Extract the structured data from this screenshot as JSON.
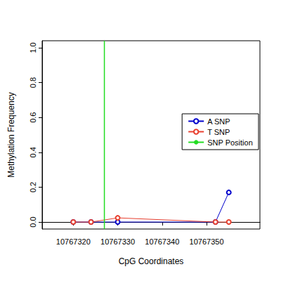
{
  "chart_data": {
    "type": "line",
    "x_label": "CpG Coordinates",
    "y_label": "Methylation Frequency",
    "x": [
      10767320,
      10767324,
      10767330,
      10767352,
      10767355
    ],
    "series": [
      {
        "name": "A SNP",
        "color": "#0000cc",
        "values": [
          0,
          0,
          0,
          0,
          0.17
        ],
        "marker": "circle"
      },
      {
        "name": "T SNP",
        "color": "#e8402f",
        "values": [
          0,
          0,
          0.024,
          0,
          0
        ],
        "marker": "circle"
      },
      {
        "name": "SNP Position",
        "color": "#22dd22",
        "type": "vline",
        "x": 10767327
      }
    ],
    "xlim": [
      10767313,
      10767362
    ],
    "xticks": [
      10767320,
      10767330,
      10767340,
      10767350
    ],
    "ylim": [
      -0.04,
      1.04
    ],
    "yticks": [
      {
        "value": 0,
        "label": "0.0"
      },
      {
        "value": 0.2,
        "label": "0.2"
      },
      {
        "value": 0.4,
        "label": "0.4"
      },
      {
        "value": 0.6,
        "label": "0.6"
      },
      {
        "value": 0.8,
        "label": "0.8"
      },
      {
        "value": 1,
        "label": "1.0"
      }
    ],
    "grid": false,
    "legend": "right"
  }
}
